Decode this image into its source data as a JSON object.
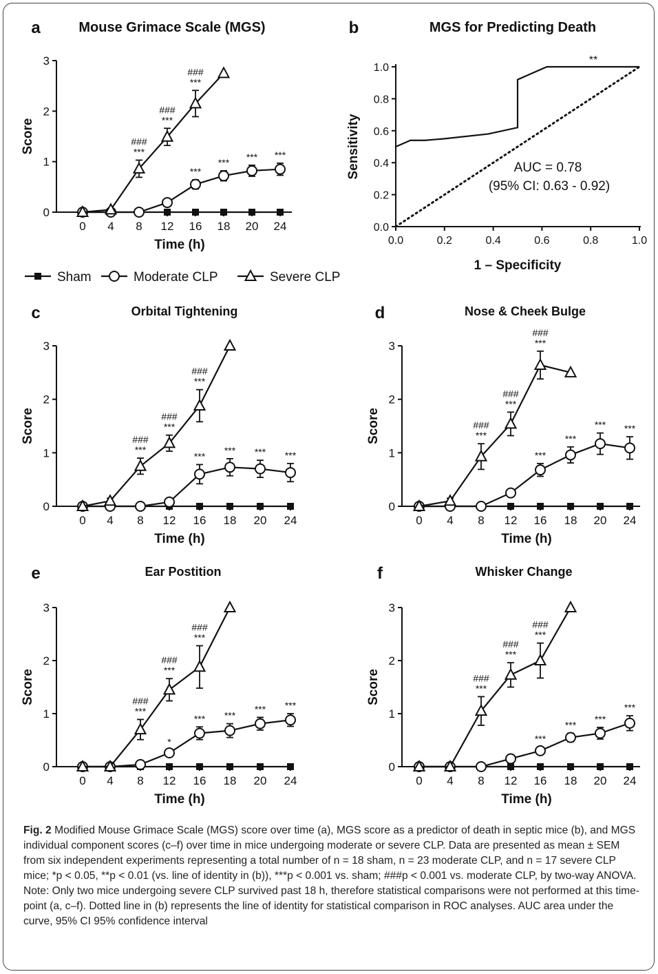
{
  "figure": {
    "caption": {
      "label": "Fig. 2",
      "text": "Modified Mouse Grimace Scale (MGS) score over time (a), MGS score as a predictor of death in septic mice (b), and MGS individual component scores (c–f) over time in mice undergoing moderate or severe CLP. Data are presented as mean ± SEM from six independent experiments representing a total number of n = 18 sham, n = 23 moderate CLP, and n = 17 severe CLP mice; *p < 0.05, **p < 0.01 (vs. line of identity in (b)), ***p < 0.001 vs. sham; ###p < 0.001 vs. moderate CLP, by two-way ANOVA. Note: Only two mice undergoing severe CLP survived past 18 h, therefore statistical comparisons were not performed at this time-point (a, c–f). Dotted line in (b) represents the line of identity for statistical comparison in ROC analyses. AUC area under the curve, 95% CI 95% confidence interval"
    },
    "legend": {
      "items": [
        {
          "label": "Sham",
          "marker": "filled-square"
        },
        {
          "label": "Moderate CLP",
          "marker": "open-circle"
        },
        {
          "label": "Severe CLP",
          "marker": "open-triangle"
        }
      ]
    }
  },
  "chart_data": [
    {
      "panel": "a",
      "type": "line",
      "title": "Mouse Grimace Scale (MGS)",
      "xlabel": "Time (h)",
      "ylabel": "Score",
      "categories": [
        "0",
        "4",
        "8",
        "12",
        "16",
        "18",
        "20",
        "24"
      ],
      "ylim": [
        0,
        3
      ],
      "yticks": [
        "0",
        "1",
        "2",
        "3"
      ],
      "series": [
        {
          "name": "Sham",
          "values": [
            0,
            0,
            0,
            0,
            0,
            0,
            0,
            0
          ],
          "err": [
            0,
            0,
            0,
            0,
            0,
            0,
            0,
            0
          ]
        },
        {
          "name": "Moderate CLP",
          "values": [
            0,
            0,
            0,
            0.19,
            0.55,
            0.72,
            0.82,
            0.85
          ],
          "err": [
            0,
            0,
            0,
            0.03,
            0.09,
            0.1,
            0.11,
            0.12
          ]
        },
        {
          "name": "Severe CLP",
          "values": [
            0,
            0.05,
            0.86,
            1.49,
            2.15,
            2.75,
            null,
            null
          ],
          "err": [
            0,
            0.02,
            0.17,
            0.17,
            0.26,
            0,
            null,
            null
          ]
        }
      ],
      "annotations": [
        {
          "series": "Moderate CLP",
          "x": "16",
          "text": [
            "***"
          ]
        },
        {
          "series": "Moderate CLP",
          "x": "18",
          "text": [
            "***"
          ]
        },
        {
          "series": "Moderate CLP",
          "x": "20",
          "text": [
            "***"
          ]
        },
        {
          "series": "Moderate CLP",
          "x": "24",
          "text": [
            "***"
          ]
        },
        {
          "series": "Severe CLP",
          "x": "8",
          "text": [
            "###",
            "***"
          ]
        },
        {
          "series": "Severe CLP",
          "x": "12",
          "text": [
            "###",
            "***"
          ]
        },
        {
          "series": "Severe CLP",
          "x": "16",
          "text": [
            "###",
            "***"
          ]
        }
      ]
    },
    {
      "panel": "b",
      "type": "line",
      "title": "MGS for Predicting Death",
      "xlabel": "1 – Specificity",
      "ylabel": "Sensitivity",
      "xlim": [
        0,
        1
      ],
      "ylim": [
        0,
        1
      ],
      "xticks": [
        "0.0",
        "0.2",
        "0.4",
        "0.6",
        "0.8",
        "1.0"
      ],
      "yticks": [
        "0.0",
        "0.2",
        "0.4",
        "0.6",
        "0.8",
        "1.0"
      ],
      "series": [
        {
          "name": "ROC",
          "x": [
            0,
            0.06,
            0.06,
            0.12,
            0.2,
            0.38,
            0.5,
            0.5,
            0.56,
            0.62,
            0.69,
            1.0
          ],
          "y": [
            0.5,
            0.54,
            0.54,
            0.54,
            0.55,
            0.58,
            0.62,
            0.92,
            0.96,
            1.0,
            1.0,
            1.0
          ]
        },
        {
          "name": "Line of identity",
          "x": [
            0,
            1
          ],
          "y": [
            0,
            1
          ]
        }
      ],
      "annotations": [
        {
          "text": "AUC = 0.78"
        },
        {
          "text": "(95% CI: 0.63 - 0.92)"
        },
        {
          "text": "**"
        }
      ]
    },
    {
      "panel": "c",
      "type": "line",
      "title": "Orbital Tightening",
      "xlabel": "Time (h)",
      "ylabel": "Score",
      "categories": [
        "0",
        "4",
        "8",
        "12",
        "16",
        "18",
        "20",
        "24"
      ],
      "ylim": [
        0,
        3
      ],
      "yticks": [
        "0",
        "1",
        "2",
        "3"
      ],
      "series": [
        {
          "name": "Sham",
          "values": [
            0,
            0,
            0,
            0,
            0,
            0,
            0,
            0
          ],
          "err": [
            0,
            0,
            0,
            0,
            0,
            0,
            0,
            0
          ]
        },
        {
          "name": "Moderate CLP",
          "values": [
            0,
            0,
            0,
            0.08,
            0.6,
            0.73,
            0.7,
            0.63
          ],
          "err": [
            0,
            0,
            0,
            0.04,
            0.18,
            0.16,
            0.16,
            0.17
          ]
        },
        {
          "name": "Severe CLP",
          "values": [
            0,
            0.1,
            0.75,
            1.18,
            1.88,
            3.0,
            null,
            null
          ],
          "err": [
            0,
            0.05,
            0.15,
            0.15,
            0.3,
            0,
            null,
            null
          ]
        }
      ],
      "annotations": [
        {
          "series": "Moderate CLP",
          "x": "16",
          "text": [
            "***"
          ]
        },
        {
          "series": "Moderate CLP",
          "x": "18",
          "text": [
            "***"
          ]
        },
        {
          "series": "Moderate CLP",
          "x": "20",
          "text": [
            "***"
          ]
        },
        {
          "series": "Moderate CLP",
          "x": "24",
          "text": [
            "***"
          ]
        },
        {
          "series": "Severe CLP",
          "x": "8",
          "text": [
            "###",
            "***"
          ]
        },
        {
          "series": "Severe CLP",
          "x": "12",
          "text": [
            "###",
            "***"
          ]
        },
        {
          "series": "Severe CLP",
          "x": "16",
          "text": [
            "###",
            "***"
          ]
        }
      ]
    },
    {
      "panel": "d",
      "type": "line",
      "title": "Nose & Cheek Bulge",
      "xlabel": "Time (h)",
      "ylabel": "Score",
      "categories": [
        "0",
        "4",
        "8",
        "12",
        "16",
        "18",
        "20",
        "24"
      ],
      "ylim": [
        0,
        3
      ],
      "yticks": [
        "0",
        "1",
        "2",
        "3"
      ],
      "series": [
        {
          "name": "Sham",
          "values": [
            0,
            0,
            0,
            0,
            0,
            0,
            0,
            0
          ],
          "err": [
            0,
            0,
            0,
            0,
            0,
            0,
            0,
            0
          ]
        },
        {
          "name": "Moderate CLP",
          "values": [
            0,
            0,
            0,
            0.25,
            0.68,
            0.96,
            1.17,
            1.09
          ],
          "err": [
            0,
            0,
            0,
            0.03,
            0.12,
            0.15,
            0.2,
            0.21
          ]
        },
        {
          "name": "Severe CLP",
          "values": [
            0,
            0.1,
            0.93,
            1.54,
            2.64,
            2.5,
            null,
            null
          ],
          "err": [
            0,
            0.05,
            0.24,
            0.22,
            0.26,
            0,
            null,
            null
          ]
        }
      ],
      "annotations": [
        {
          "series": "Moderate CLP",
          "x": "16",
          "text": [
            "***"
          ]
        },
        {
          "series": "Moderate CLP",
          "x": "18",
          "text": [
            "***"
          ]
        },
        {
          "series": "Moderate CLP",
          "x": "20",
          "text": [
            "***"
          ]
        },
        {
          "series": "Moderate CLP",
          "x": "24",
          "text": [
            "***"
          ]
        },
        {
          "series": "Severe CLP",
          "x": "8",
          "text": [
            "###",
            "***"
          ]
        },
        {
          "series": "Severe CLP",
          "x": "12",
          "text": [
            "###",
            "***"
          ]
        },
        {
          "series": "Severe CLP",
          "x": "16",
          "text": [
            "###",
            "***"
          ]
        }
      ]
    },
    {
      "panel": "e",
      "type": "line",
      "title": "Ear Postition",
      "xlabel": "Time (h)",
      "ylabel": "Score",
      "categories": [
        "0",
        "4",
        "8",
        "12",
        "16",
        "18",
        "20",
        "24"
      ],
      "ylim": [
        0,
        3
      ],
      "yticks": [
        "0",
        "1",
        "2",
        "3"
      ],
      "series": [
        {
          "name": "Sham",
          "values": [
            0,
            0,
            0,
            0,
            0,
            0,
            0,
            0
          ],
          "err": [
            0,
            0,
            0,
            0,
            0,
            0,
            0,
            0
          ]
        },
        {
          "name": "Moderate CLP",
          "values": [
            0,
            0,
            0.04,
            0.26,
            0.63,
            0.68,
            0.81,
            0.88
          ],
          "err": [
            0,
            0,
            0.02,
            0.05,
            0.12,
            0.13,
            0.12,
            0.12
          ]
        },
        {
          "name": "Severe CLP",
          "values": [
            0,
            0,
            0.7,
            1.45,
            1.88,
            3.0,
            null,
            null
          ],
          "err": [
            0,
            0,
            0.19,
            0.21,
            0.4,
            0,
            null,
            null
          ]
        }
      ],
      "annotations": [
        {
          "series": "Moderate CLP",
          "x": "12",
          "text": [
            "*"
          ]
        },
        {
          "series": "Moderate CLP",
          "x": "16",
          "text": [
            "***"
          ]
        },
        {
          "series": "Moderate CLP",
          "x": "18",
          "text": [
            "***"
          ]
        },
        {
          "series": "Moderate CLP",
          "x": "20",
          "text": [
            "***"
          ]
        },
        {
          "series": "Moderate CLP",
          "x": "24",
          "text": [
            "***"
          ]
        },
        {
          "series": "Severe CLP",
          "x": "8",
          "text": [
            "###",
            "***"
          ]
        },
        {
          "series": "Severe CLP",
          "x": "12",
          "text": [
            "###",
            "***"
          ]
        },
        {
          "series": "Severe CLP",
          "x": "16",
          "text": [
            "###",
            "***"
          ]
        }
      ]
    },
    {
      "panel": "f",
      "type": "line",
      "title": "Whisker Change",
      "xlabel": "Time (h)",
      "ylabel": "Score",
      "categories": [
        "0",
        "4",
        "8",
        "12",
        "16",
        "18",
        "20",
        "24"
      ],
      "ylim": [
        0,
        3
      ],
      "yticks": [
        "0",
        "1",
        "2",
        "3"
      ],
      "series": [
        {
          "name": "Sham",
          "values": [
            0,
            0,
            0,
            0,
            0,
            0,
            0,
            0
          ],
          "err": [
            0,
            0,
            0,
            0,
            0,
            0,
            0,
            0
          ]
        },
        {
          "name": "Moderate CLP",
          "values": [
            0,
            0,
            0,
            0.15,
            0.3,
            0.55,
            0.63,
            0.82
          ],
          "err": [
            0,
            0,
            0,
            0.03,
            0.07,
            0.08,
            0.11,
            0.14
          ]
        },
        {
          "name": "Severe CLP",
          "values": [
            0,
            0,
            1.05,
            1.73,
            2.0,
            3.0,
            null,
            null
          ],
          "err": [
            0,
            0,
            0.27,
            0.23,
            0.33,
            0,
            null,
            null
          ]
        }
      ],
      "annotations": [
        {
          "series": "Moderate CLP",
          "x": "16",
          "text": [
            "***"
          ]
        },
        {
          "series": "Moderate CLP",
          "x": "18",
          "text": [
            "***"
          ]
        },
        {
          "series": "Moderate CLP",
          "x": "20",
          "text": [
            "***"
          ]
        },
        {
          "series": "Moderate CLP",
          "x": "24",
          "text": [
            "***"
          ]
        },
        {
          "series": "Severe CLP",
          "x": "8",
          "text": [
            "###",
            "***"
          ]
        },
        {
          "series": "Severe CLP",
          "x": "12",
          "text": [
            "###",
            "***"
          ]
        },
        {
          "series": "Severe CLP",
          "x": "16",
          "text": [
            "###",
            "***"
          ]
        }
      ]
    }
  ]
}
